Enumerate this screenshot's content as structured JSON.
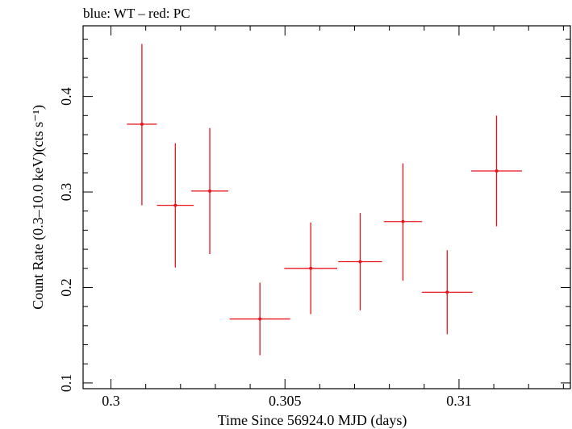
{
  "chart_data": {
    "type": "scatter",
    "title": "blue: WT – red: PC",
    "xlabel": "Time Since 56924.0 MJD (days)",
    "ylabel": "Count Rate (0.3–10.0 keV)(cts s⁻¹)",
    "xlim": [
      0.2992,
      0.3132
    ],
    "ylim": [
      0.094,
      0.474
    ],
    "x_ticks": [
      {
        "value": 0.3,
        "label": "0.3"
      },
      {
        "value": 0.305,
        "label": "0.305"
      },
      {
        "value": 0.31,
        "label": "0.31"
      }
    ],
    "y_ticks": [
      {
        "value": 0.1,
        "label": "0.1"
      },
      {
        "value": 0.2,
        "label": "0.2"
      },
      {
        "value": 0.3,
        "label": "0.3"
      },
      {
        "value": 0.4,
        "label": "0.4"
      }
    ],
    "grid": false,
    "series": [
      {
        "color": "#e8141b",
        "points": [
          {
            "x": 0.30089,
            "xerr": 0.00043,
            "y": 0.371,
            "yerr_low": 0.085,
            "yerr_high": 0.084
          },
          {
            "x": 0.30185,
            "xerr": 0.00053,
            "y": 0.286,
            "yerr_low": 0.065,
            "yerr_high": 0.065
          },
          {
            "x": 0.30284,
            "xerr": 0.00053,
            "y": 0.301,
            "yerr_low": 0.066,
            "yerr_high": 0.066
          },
          {
            "x": 0.30428,
            "xerr": 0.00087,
            "y": 0.167,
            "yerr_low": 0.038,
            "yerr_high": 0.038
          },
          {
            "x": 0.30574,
            "xerr": 0.00076,
            "y": 0.22,
            "yerr_low": 0.048,
            "yerr_high": 0.048
          },
          {
            "x": 0.30716,
            "xerr": 0.00063,
            "y": 0.227,
            "yerr_low": 0.051,
            "yerr_high": 0.051
          },
          {
            "x": 0.30839,
            "xerr": 0.00055,
            "y": 0.269,
            "yerr_low": 0.062,
            "yerr_high": 0.061
          },
          {
            "x": 0.30966,
            "xerr": 0.00073,
            "y": 0.195,
            "yerr_low": 0.044,
            "yerr_high": 0.044
          },
          {
            "x": 0.31108,
            "xerr": 0.00073,
            "y": 0.322,
            "yerr_low": 0.058,
            "yerr_high": 0.058
          }
        ]
      }
    ]
  }
}
